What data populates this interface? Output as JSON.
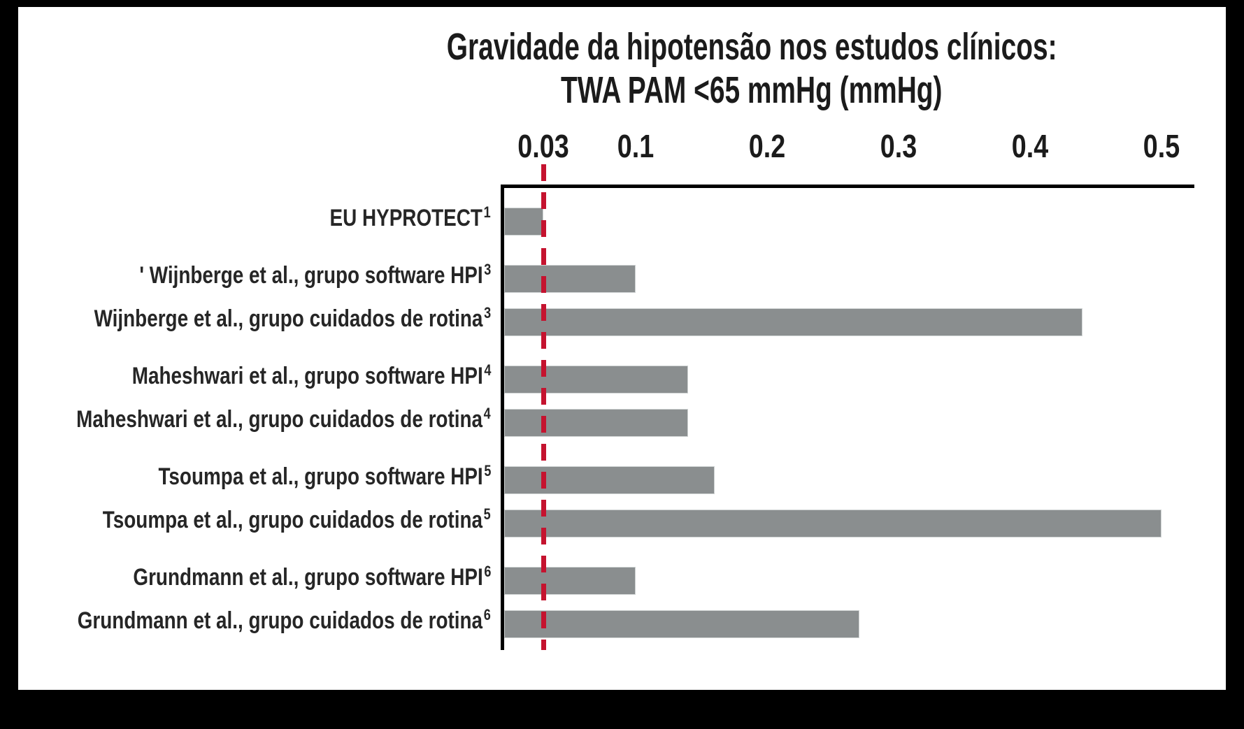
{
  "frame_color": "#000000",
  "chart_data": {
    "type": "bar",
    "orientation": "horizontal",
    "title": "Gravidade da hipotensão nos estudos clínicos:",
    "subtitle": "TWA PAM <65 mmHg (mmHg)",
    "x_ticks": [
      "0.03",
      "0.1",
      "0.2",
      "0.3",
      "0.4",
      "0.5"
    ],
    "x_tick_values": [
      0.03,
      0.1,
      0.2,
      0.3,
      0.4,
      0.5
    ],
    "xlim": [
      0,
      0.525
    ],
    "grid": false,
    "legend": "none",
    "bar_color": "#8a8e8f",
    "reference_line": {
      "value": 0.03,
      "color": "#c5132f",
      "style": "dashed"
    },
    "groups": [
      {
        "rows": [
          {
            "label": "EU HYPROTECT",
            "footnote": "1",
            "value": 0.03
          }
        ]
      },
      {
        "rows": [
          {
            "label": "' Wijnberge et al., grupo software HPI",
            "footnote": "3",
            "value": 0.1
          },
          {
            "label": "Wijnberge et al., grupo cuidados de rotina",
            "footnote": "3",
            "value": 0.44
          }
        ]
      },
      {
        "rows": [
          {
            "label": "Maheshwari et al., grupo software HPI",
            "footnote": "4",
            "value": 0.14
          },
          {
            "label": "Maheshwari et al., grupo cuidados de rotina",
            "footnote": "4",
            "value": 0.14
          }
        ]
      },
      {
        "rows": [
          {
            "label": "Tsoumpa et al., grupo software HPI",
            "footnote": "5",
            "value": 0.16
          },
          {
            "label": "Tsoumpa et al., grupo cuidados de rotina",
            "footnote": "5",
            "value": 0.5
          }
        ]
      },
      {
        "rows": [
          {
            "label": "Grundmann et al., grupo software HPI",
            "footnote": "6",
            "value": 0.1
          },
          {
            "label": "Grundmann et al., grupo cuidados de rotina",
            "footnote": "6",
            "value": 0.27
          }
        ]
      }
    ]
  }
}
